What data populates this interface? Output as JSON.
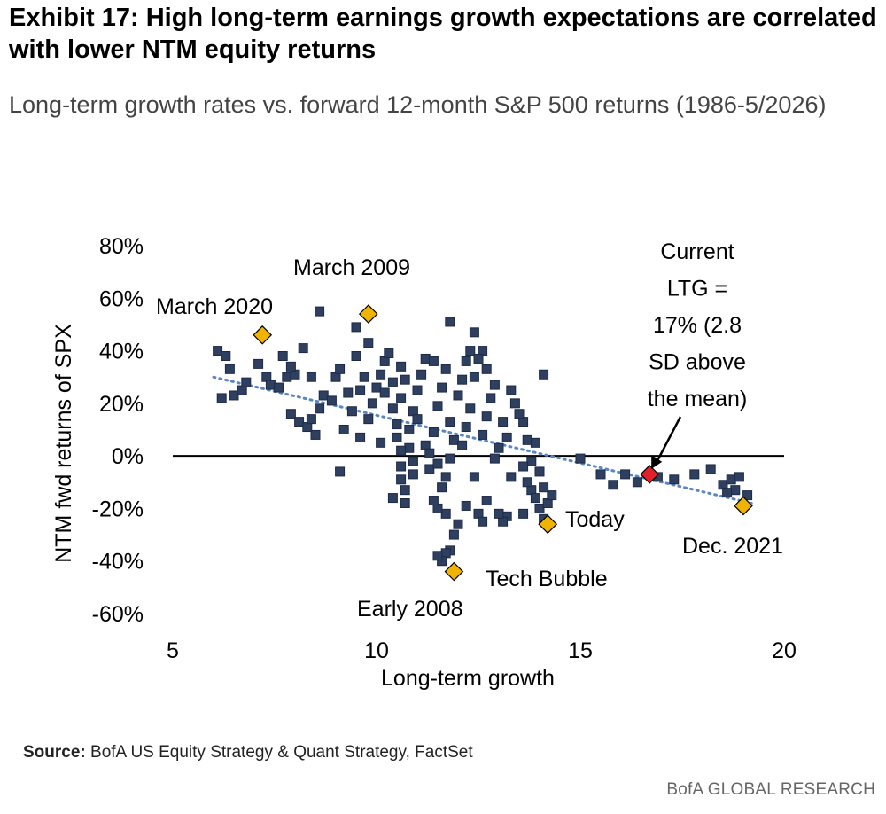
{
  "exhibit": {
    "title": "Exhibit 17: High long-term earnings growth expectations are correlated with lower NTM equity returns",
    "subtitle": "Long-term growth rates vs. forward 12-month S&P 500 returns (1986-5/2026)"
  },
  "footer": {
    "source_label": "Source:",
    "source_text": "BofA US Equity Strategy & Quant Strategy, FactSet",
    "brand": "BofA GLOBAL RESEARCH"
  },
  "chart_data": {
    "type": "scatter",
    "xlabel": "Long-term growth",
    "ylabel": "NTM fwd returns of SPX",
    "xlim": [
      5,
      20
    ],
    "ylim": [
      -60,
      80
    ],
    "x_ticks": [
      "5",
      "10",
      "15",
      "20"
    ],
    "y_ticks": [
      "80%",
      "60%",
      "40%",
      "20%",
      "0%",
      "-20%",
      "-40%",
      "-60%"
    ],
    "colors": {
      "points": "#2f3f5f",
      "points_edge": "#1c2a48",
      "highlight": "#f0b400",
      "current": "#e0202a",
      "trend": "#5b86c4"
    },
    "trendline": {
      "x": [
        6.0,
        19.2
      ],
      "y": [
        30,
        -18
      ],
      "style": "dotted"
    },
    "points": [
      [
        6.1,
        40
      ],
      [
        6.3,
        38
      ],
      [
        6.4,
        33
      ],
      [
        6.2,
        22
      ],
      [
        6.5,
        23
      ],
      [
        6.7,
        25
      ],
      [
        6.8,
        28
      ],
      [
        7.1,
        35
      ],
      [
        7.3,
        30
      ],
      [
        7.4,
        27
      ],
      [
        7.6,
        26
      ],
      [
        7.8,
        30
      ],
      [
        8.0,
        31
      ],
      [
        7.9,
        34
      ],
      [
        8.2,
        41
      ],
      [
        7.7,
        38
      ],
      [
        7.9,
        16
      ],
      [
        8.1,
        13
      ],
      [
        8.3,
        11
      ],
      [
        8.4,
        14
      ],
      [
        8.5,
        8
      ],
      [
        8.6,
        18
      ],
      [
        8.7,
        23
      ],
      [
        8.4,
        30
      ],
      [
        8.9,
        21
      ],
      [
        9.0,
        30
      ],
      [
        9.1,
        33
      ],
      [
        8.6,
        55
      ],
      [
        9.5,
        49
      ],
      [
        9.2,
        10
      ],
      [
        9.4,
        17
      ],
      [
        9.3,
        24
      ],
      [
        9.6,
        25
      ],
      [
        9.7,
        30
      ],
      [
        9.5,
        38
      ],
      [
        9.8,
        43
      ],
      [
        9.6,
        7
      ],
      [
        9.8,
        14
      ],
      [
        9.9,
        20
      ],
      [
        10.0,
        26
      ],
      [
        10.1,
        31
      ],
      [
        10.2,
        36
      ],
      [
        10.3,
        39
      ],
      [
        10.2,
        24
      ],
      [
        10.4,
        28
      ],
      [
        10.4,
        18
      ],
      [
        10.5,
        12
      ],
      [
        10.6,
        22
      ],
      [
        10.7,
        29
      ],
      [
        10.6,
        34
      ],
      [
        10.8,
        10
      ],
      [
        10.9,
        17
      ],
      [
        10.8,
        3
      ],
      [
        10.9,
        -2
      ],
      [
        10.1,
        5
      ],
      [
        10.5,
        7
      ],
      [
        9.1,
        -6
      ],
      [
        10.6,
        -4
      ],
      [
        10.6,
        -9
      ],
      [
        10.7,
        -13
      ],
      [
        10.7,
        -18
      ],
      [
        10.9,
        -7
      ],
      [
        10.6,
        2
      ],
      [
        11.0,
        25
      ],
      [
        11.1,
        31
      ],
      [
        11.2,
        37
      ],
      [
        11.0,
        14
      ],
      [
        11.2,
        4
      ],
      [
        11.3,
        -5
      ],
      [
        11.4,
        9
      ],
      [
        11.5,
        19
      ],
      [
        11.6,
        26
      ],
      [
        11.7,
        33
      ],
      [
        11.4,
        36
      ],
      [
        11.8,
        13
      ],
      [
        11.9,
        6
      ],
      [
        11.8,
        -1
      ],
      [
        11.7,
        -8
      ],
      [
        11.6,
        -12
      ],
      [
        11.5,
        -3
      ],
      [
        12.0,
        23
      ],
      [
        12.1,
        29
      ],
      [
        12.2,
        36
      ],
      [
        12.3,
        40
      ],
      [
        11.8,
        51
      ],
      [
        12.4,
        47
      ],
      [
        12.6,
        40
      ],
      [
        12.5,
        37
      ],
      [
        12.4,
        30
      ],
      [
        12.3,
        18
      ],
      [
        12.2,
        11
      ],
      [
        12.1,
        4
      ],
      [
        12.6,
        8
      ],
      [
        12.7,
        15
      ],
      [
        12.8,
        22
      ],
      [
        12.9,
        27
      ],
      [
        12.7,
        33
      ],
      [
        13.1,
        13
      ],
      [
        13.2,
        7
      ],
      [
        13.3,
        25
      ],
      [
        13.4,
        20
      ],
      [
        13.0,
        3
      ],
      [
        13.3,
        -8
      ],
      [
        13.2,
        -23
      ],
      [
        13.1,
        -25
      ],
      [
        13.6,
        -22
      ],
      [
        13.6,
        13
      ],
      [
        13.7,
        6
      ],
      [
        13.8,
        -2
      ],
      [
        13.9,
        5
      ],
      [
        13.8,
        -13
      ],
      [
        13.9,
        -16
      ],
      [
        14.0,
        -20
      ],
      [
        14.1,
        -24
      ],
      [
        14.2,
        -18
      ],
      [
        14.3,
        -15
      ],
      [
        14.1,
        -12
      ],
      [
        14.0,
        -6
      ],
      [
        13.7,
        -10
      ],
      [
        14.1,
        31
      ],
      [
        12.5,
        -22
      ],
      [
        12.0,
        -26
      ],
      [
        11.7,
        -22
      ],
      [
        11.5,
        -20
      ],
      [
        11.4,
        -17
      ],
      [
        11.9,
        -30
      ],
      [
        11.8,
        -36
      ],
      [
        11.7,
        -37
      ],
      [
        11.6,
        -40
      ],
      [
        11.5,
        -38
      ],
      [
        12.2,
        -19
      ],
      [
        12.7,
        -17
      ],
      [
        12.6,
        -25
      ],
      [
        12.9,
        -1
      ],
      [
        13.0,
        -22
      ],
      [
        13.5,
        16
      ],
      [
        13.6,
        -4
      ],
      [
        12.4,
        -8
      ],
      [
        10.4,
        -16
      ],
      [
        11.3,
        1
      ],
      [
        15.0,
        -1
      ],
      [
        15.5,
        -7
      ],
      [
        15.8,
        -11
      ],
      [
        16.1,
        -7
      ],
      [
        16.4,
        -10
      ],
      [
        16.9,
        -8
      ],
      [
        17.3,
        -9
      ],
      [
        17.8,
        -7
      ],
      [
        18.2,
        -5
      ],
      [
        18.5,
        -11
      ],
      [
        18.7,
        -9
      ],
      [
        18.9,
        -8
      ],
      [
        19.1,
        -15
      ],
      [
        18.8,
        -13
      ],
      [
        18.6,
        -14
      ]
    ],
    "highlights": [
      {
        "x": 7.2,
        "y": 46,
        "label": "March 2020"
      },
      {
        "x": 9.8,
        "y": 54,
        "label": "March 2009"
      },
      {
        "x": 11.9,
        "y": -44,
        "label": "Early 2008"
      },
      {
        "x": 11.9,
        "y": -44,
        "label": "Tech Bubble"
      },
      {
        "x": 14.2,
        "y": -26,
        "label": "Today"
      },
      {
        "x": 19.0,
        "y": -19,
        "label": "Dec. 2021"
      }
    ],
    "current": {
      "x": 16.7,
      "y": -7,
      "label": [
        "Current",
        "LTG =",
        "17% (2.8",
        "SD above",
        "the mean)"
      ]
    }
  }
}
